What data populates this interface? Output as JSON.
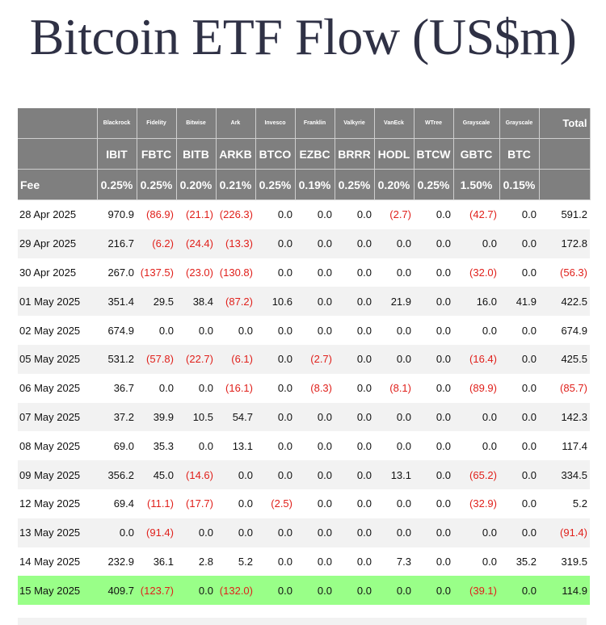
{
  "title": "Bitcoin ETF Flow (US$m)",
  "header": {
    "issuers": [
      "Blackrock",
      "Fidelity",
      "Bitwise",
      "Ark",
      "Invesco",
      "Franklin",
      "Valkyrie",
      "VanEck",
      "WTree",
      "Grayscale",
      "Grayscale"
    ],
    "total_label": "Total",
    "tickers": [
      "IBIT",
      "FBTC",
      "BITB",
      "ARKB",
      "BTCO",
      "EZBC",
      "BRRR",
      "HODL",
      "BTCW",
      "GBTC",
      "BTC"
    ],
    "fee_label": "Fee",
    "fees": [
      "0.25%",
      "0.25%",
      "0.20%",
      "0.21%",
      "0.25%",
      "0.19%",
      "0.25%",
      "0.20%",
      "0.25%",
      "1.50%",
      "0.15%"
    ]
  },
  "rows": [
    {
      "date": "28 Apr 2025",
      "values": [
        "970.9",
        "(86.9)",
        "(21.1)",
        "(226.3)",
        "0.0",
        "0.0",
        "0.0",
        "(2.7)",
        "0.0",
        "(42.7)",
        "0.0"
      ],
      "total": "591.2"
    },
    {
      "date": "29 Apr 2025",
      "values": [
        "216.7",
        "(6.2)",
        "(24.4)",
        "(13.3)",
        "0.0",
        "0.0",
        "0.0",
        "0.0",
        "0.0",
        "0.0",
        "0.0"
      ],
      "total": "172.8"
    },
    {
      "date": "30 Apr 2025",
      "values": [
        "267.0",
        "(137.5)",
        "(23.0)",
        "(130.8)",
        "0.0",
        "0.0",
        "0.0",
        "0.0",
        "0.0",
        "(32.0)",
        "0.0"
      ],
      "total": "(56.3)"
    },
    {
      "date": "01 May 2025",
      "values": [
        "351.4",
        "29.5",
        "38.4",
        "(87.2)",
        "10.6",
        "0.0",
        "0.0",
        "21.9",
        "0.0",
        "16.0",
        "41.9"
      ],
      "total": "422.5"
    },
    {
      "date": "02 May 2025",
      "values": [
        "674.9",
        "0.0",
        "0.0",
        "0.0",
        "0.0",
        "0.0",
        "0.0",
        "0.0",
        "0.0",
        "0.0",
        "0.0"
      ],
      "total": "674.9"
    },
    {
      "date": "05 May 2025",
      "values": [
        "531.2",
        "(57.8)",
        "(22.7)",
        "(6.1)",
        "0.0",
        "(2.7)",
        "0.0",
        "0.0",
        "0.0",
        "(16.4)",
        "0.0"
      ],
      "total": "425.5"
    },
    {
      "date": "06 May 2025",
      "values": [
        "36.7",
        "0.0",
        "0.0",
        "(16.1)",
        "0.0",
        "(8.3)",
        "0.0",
        "(8.1)",
        "0.0",
        "(89.9)",
        "0.0"
      ],
      "total": "(85.7)"
    },
    {
      "date": "07 May 2025",
      "values": [
        "37.2",
        "39.9",
        "10.5",
        "54.7",
        "0.0",
        "0.0",
        "0.0",
        "0.0",
        "0.0",
        "0.0",
        "0.0"
      ],
      "total": "142.3"
    },
    {
      "date": "08 May 2025",
      "values": [
        "69.0",
        "35.3",
        "0.0",
        "13.1",
        "0.0",
        "0.0",
        "0.0",
        "0.0",
        "0.0",
        "0.0",
        "0.0"
      ],
      "total": "117.4"
    },
    {
      "date": "09 May 2025",
      "values": [
        "356.2",
        "45.0",
        "(14.6)",
        "0.0",
        "0.0",
        "0.0",
        "0.0",
        "13.1",
        "0.0",
        "(65.2)",
        "0.0"
      ],
      "total": "334.5"
    },
    {
      "date": "12 May 2025",
      "values": [
        "69.4",
        "(11.1)",
        "(17.7)",
        "0.0",
        "(2.5)",
        "0.0",
        "0.0",
        "0.0",
        "0.0",
        "(32.9)",
        "0.0"
      ],
      "total": "5.2"
    },
    {
      "date": "13 May 2025",
      "values": [
        "0.0",
        "(91.4)",
        "0.0",
        "0.0",
        "0.0",
        "0.0",
        "0.0",
        "0.0",
        "0.0",
        "0.0",
        "0.0"
      ],
      "total": "(91.4)"
    },
    {
      "date": "14 May 2025",
      "values": [
        "232.9",
        "36.1",
        "2.8",
        "5.2",
        "0.0",
        "0.0",
        "0.0",
        "7.3",
        "0.0",
        "0.0",
        "35.2"
      ],
      "total": "319.5"
    },
    {
      "date": "15 May 2025",
      "values": [
        "409.7",
        "(123.7)",
        "0.0",
        "(132.0)",
        "0.0",
        "0.0",
        "0.0",
        "0.0",
        "0.0",
        "(39.1)",
        "0.0"
      ],
      "total": "114.9",
      "highlight": true
    }
  ],
  "colors": {
    "header_bg": "#7f7f7f",
    "negative": "#e0201b",
    "highlight_row": "#99ff88",
    "stripe": "#f2f2f2",
    "title": "#2f3145"
  }
}
